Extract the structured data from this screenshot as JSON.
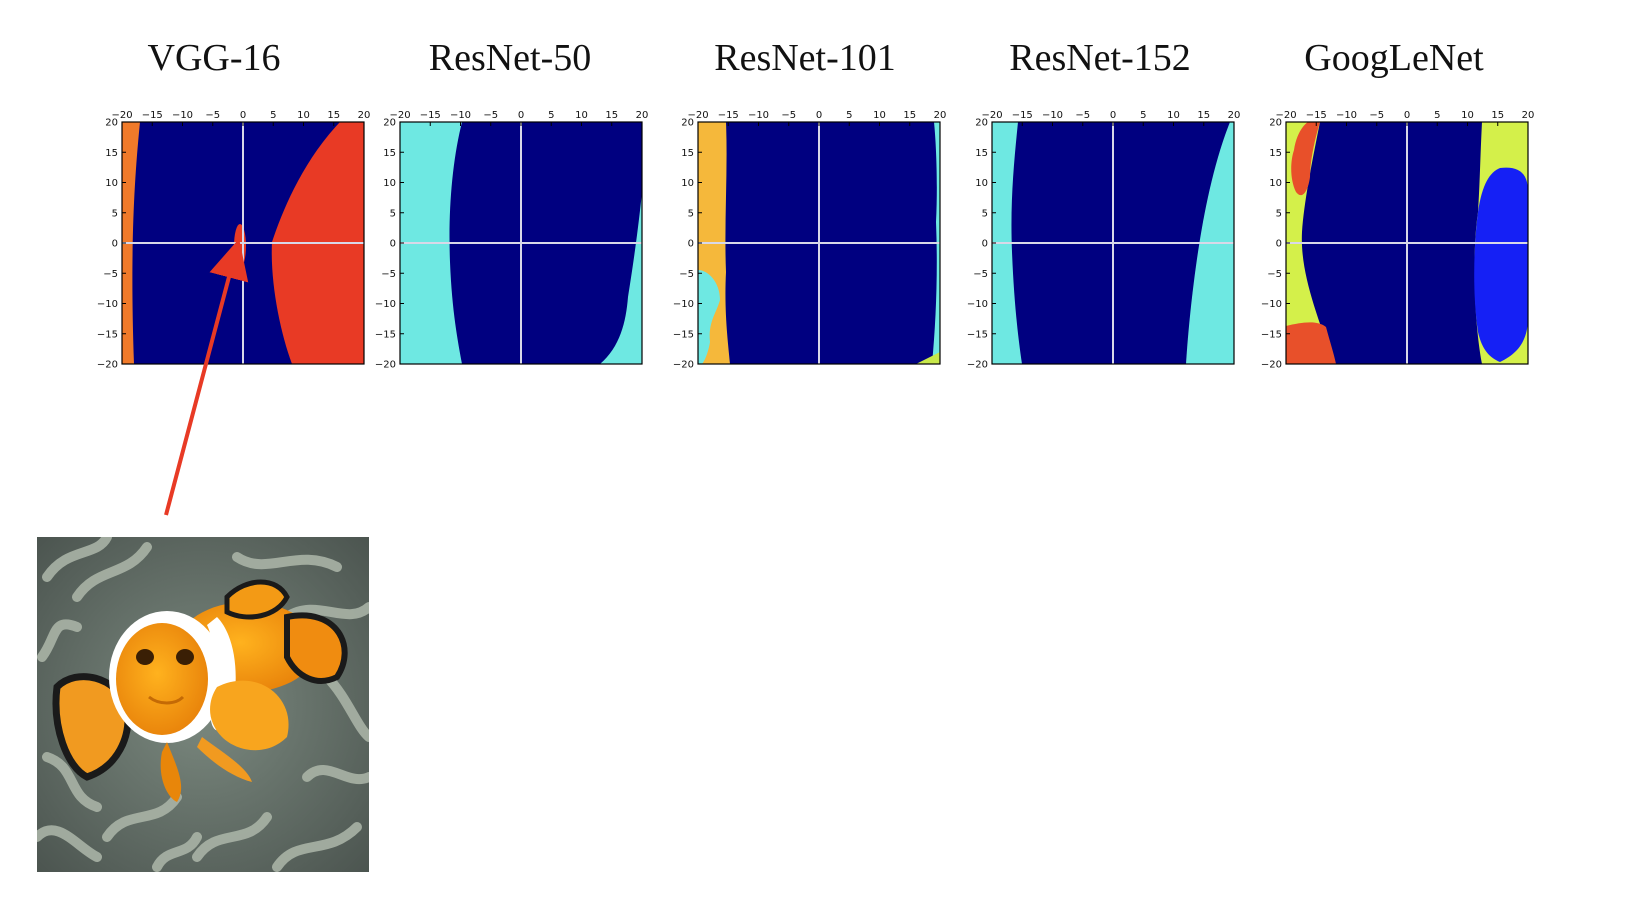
{
  "figure": {
    "titles": [
      "VGG-16",
      "ResNet-50",
      "ResNet-101",
      "ResNet-152",
      "GoogLeNet"
    ]
  },
  "chart_data": [
    {
      "type": "heatmap",
      "title": "VGG-16",
      "xlim": [
        -20,
        20
      ],
      "ylim": [
        -20,
        20
      ],
      "xticks": [
        -20,
        -15,
        -10,
        -5,
        0,
        5,
        10,
        15,
        20
      ],
      "yticks": [
        20,
        15,
        10,
        5,
        0,
        -5,
        -10,
        -15,
        -20
      ],
      "crosshair": "white lines at x=0 and y=0",
      "regions": [
        {
          "color": "#000080",
          "role": "background / original class"
        },
        {
          "color": "#f07a2a",
          "where": "left edge"
        },
        {
          "color": "#e83a25",
          "where": "right side"
        },
        {
          "color": "#e83a25",
          "where": "small ellipse near center (x≈3, y≈-1)"
        }
      ]
    },
    {
      "type": "heatmap",
      "title": "ResNet-50",
      "xlim": [
        -20,
        20
      ],
      "ylim": [
        -20,
        20
      ],
      "xticks": [
        -20,
        -15,
        -10,
        -5,
        0,
        5,
        10,
        15,
        20
      ],
      "yticks": [
        20,
        15,
        10,
        5,
        0,
        -5,
        -10,
        -15,
        -20
      ],
      "crosshair": "white lines at x=0 and y=0",
      "regions": [
        {
          "color": "#000080",
          "role": "background / original class"
        },
        {
          "color": "#6ee8e2",
          "where": "left band"
        },
        {
          "color": "#6ee8e2",
          "where": "bottom-right corner"
        }
      ]
    },
    {
      "type": "heatmap",
      "title": "ResNet-101",
      "xlim": [
        -20,
        20
      ],
      "ylim": [
        -20,
        20
      ],
      "xticks": [
        -20,
        -15,
        -10,
        -5,
        0,
        5,
        10,
        15,
        20
      ],
      "yticks": [
        20,
        15,
        10,
        5,
        0,
        -5,
        -10,
        -15,
        -20
      ],
      "crosshair": "white lines at x=0 and y=0",
      "regions": [
        {
          "color": "#000080",
          "role": "background / original class"
        },
        {
          "color": "#f5b83b",
          "where": "left band"
        },
        {
          "color": "#6ee8e2",
          "where": "lower-left patch"
        },
        {
          "color": "#6ee8e2",
          "where": "right edge sliver"
        },
        {
          "color": "#c8e84a",
          "where": "bottom-right corner"
        }
      ]
    },
    {
      "type": "heatmap",
      "title": "ResNet-152",
      "xlim": [
        -20,
        20
      ],
      "ylim": [
        -20,
        20
      ],
      "xticks": [
        -20,
        -15,
        -10,
        -5,
        0,
        5,
        10,
        15,
        20
      ],
      "yticks": [
        20,
        15,
        10,
        5,
        0,
        -5,
        -10,
        -15,
        -20
      ],
      "crosshair": "white lines at x=0 and y=0",
      "regions": [
        {
          "color": "#000080",
          "role": "background / original class"
        },
        {
          "color": "#6ee8e2",
          "where": "left band"
        },
        {
          "color": "#6ee8e2",
          "where": "right band"
        }
      ]
    },
    {
      "type": "heatmap",
      "title": "GoogLeNet",
      "xlim": [
        -20,
        20
      ],
      "ylim": [
        -20,
        20
      ],
      "xticks": [
        -20,
        -15,
        -10,
        -5,
        0,
        5,
        10,
        15,
        20
      ],
      "yticks": [
        20,
        15,
        10,
        5,
        0,
        -5,
        -10,
        -15,
        -20
      ],
      "crosshair": "white lines at x=0 and y=0",
      "regions": [
        {
          "color": "#000080",
          "role": "background / original class"
        },
        {
          "color": "#d4f04a",
          "where": "left band"
        },
        {
          "color": "#e8502a",
          "where": "upper-left blob"
        },
        {
          "color": "#e8502a",
          "where": "lower-left corner"
        },
        {
          "color": "#d4f04a",
          "where": "right band"
        },
        {
          "color": "#1520f5",
          "where": "right blob"
        }
      ]
    }
  ]
}
